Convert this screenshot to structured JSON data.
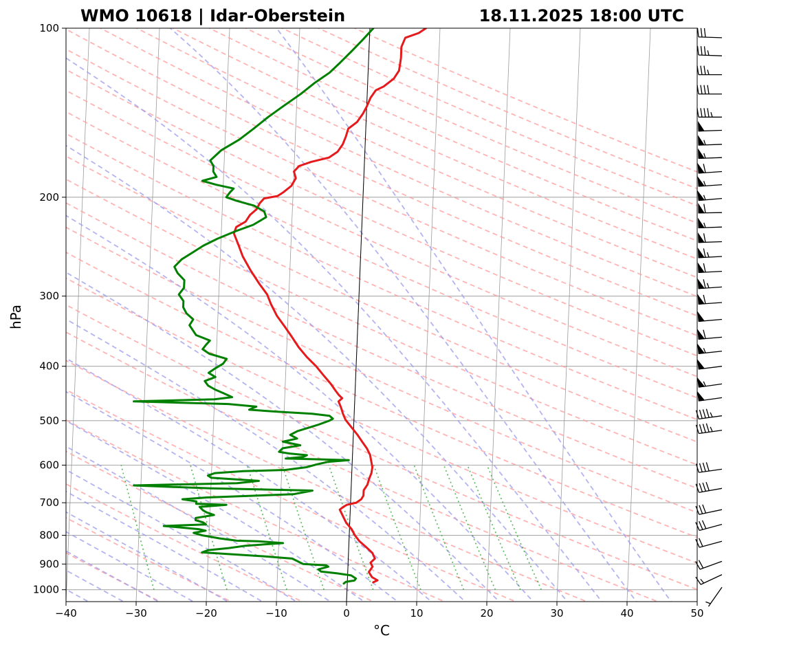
{
  "station_title": "WMO 10618 | Idar-Oberstein",
  "time_title": "18.11.2025 18:00 UTC",
  "chart_data": {
    "type": "line",
    "subtype": "skew-t log-p sounding",
    "xlabel": "°C",
    "ylabel": "hPa",
    "xlim": [
      -40,
      50
    ],
    "ylim": [
      1050,
      100
    ],
    "y_scale": "log",
    "grid": true,
    "x_ticks": [
      -40,
      -30,
      -20,
      -10,
      0,
      10,
      20,
      30,
      40,
      50
    ],
    "y_ticks": [
      1000,
      900,
      800,
      700,
      600,
      500,
      400,
      300,
      200,
      100
    ],
    "colors": {
      "temperature": "#e41a1c",
      "dewpoint": "#008000",
      "dry_adiabats": "#ff9999",
      "moist_adiabats": "#9999ee",
      "mixing_ratio": "#33aa33",
      "isotherms": "#888888",
      "zero_isotherm": "#000000",
      "grid": "#aaaaaa",
      "wind_barbs": "#000000"
    },
    "series": [
      {
        "key": "temperature",
        "points": [
          [
            3.7,
            970
          ],
          [
            4.3,
            962
          ],
          [
            3.5,
            950
          ],
          [
            3.0,
            930
          ],
          [
            3.5,
            910
          ],
          [
            3.2,
            895
          ],
          [
            3.8,
            880
          ],
          [
            3.4,
            860
          ],
          [
            2.5,
            840
          ],
          [
            1.5,
            820
          ],
          [
            0.8,
            800
          ],
          [
            0.3,
            780
          ],
          [
            -0.5,
            760
          ],
          [
            -1.0,
            740
          ],
          [
            -1.5,
            720
          ],
          [
            -1.0,
            712
          ],
          [
            -0.5,
            706
          ],
          [
            0.8,
            700
          ],
          [
            1.5,
            690
          ],
          [
            1.8,
            680
          ],
          [
            1.8,
            665
          ],
          [
            2.3,
            650
          ],
          [
            2.5,
            635
          ],
          [
            2.8,
            620
          ],
          [
            2.9,
            605
          ],
          [
            2.7,
            590
          ],
          [
            2.5,
            575
          ],
          [
            2.0,
            560
          ],
          [
            1.3,
            545
          ],
          [
            0.6,
            530
          ],
          [
            -0.4,
            512
          ],
          [
            -1.2,
            498
          ],
          [
            -1.6,
            486
          ],
          [
            -1.9,
            474
          ],
          [
            -2.3,
            462
          ],
          [
            -1.8,
            456
          ],
          [
            -2.3,
            450
          ],
          [
            -2.8,
            442
          ],
          [
            -3.5,
            430
          ],
          [
            -4.6,
            415
          ],
          [
            -5.7,
            400
          ],
          [
            -7.1,
            385
          ],
          [
            -8.3,
            370
          ],
          [
            -9.3,
            355
          ],
          [
            -10.4,
            340
          ],
          [
            -11.6,
            325
          ],
          [
            -12.5,
            310
          ],
          [
            -13.1,
            298
          ],
          [
            -14.3,
            285
          ],
          [
            -15.6,
            270
          ],
          [
            -16.8,
            255
          ],
          [
            -17.5,
            243
          ],
          [
            -18.2,
            232
          ],
          [
            -17.9,
            226
          ],
          [
            -16.6,
            221
          ],
          [
            -16.0,
            215
          ],
          [
            -15.1,
            210
          ],
          [
            -14.7,
            205
          ],
          [
            -14.1,
            201
          ],
          [
            -12.2,
            199
          ],
          [
            -11.4,
            196
          ],
          [
            -10.3,
            191
          ],
          [
            -9.7,
            185
          ],
          [
            -10.0,
            180
          ],
          [
            -9.3,
            176
          ],
          [
            -7.6,
            173
          ],
          [
            -5.1,
            170
          ],
          [
            -3.9,
            166
          ],
          [
            -3.2,
            161
          ],
          [
            -2.8,
            156
          ],
          [
            -2.5,
            151
          ],
          [
            -1.3,
            147
          ],
          [
            -0.5,
            142
          ],
          [
            0.0,
            138
          ],
          [
            0.5,
            133
          ],
          [
            1.2,
            129
          ],
          [
            2.3,
            127
          ],
          [
            3.7,
            123
          ],
          [
            4.4,
            119
          ],
          [
            4.6,
            113
          ],
          [
            4.6,
            108
          ],
          [
            5.1,
            104
          ],
          [
            7.0,
            102
          ],
          [
            8.0,
            100
          ]
        ]
      },
      {
        "key": "dewpoint",
        "points": [
          [
            -0.5,
            975
          ],
          [
            -0.2,
            968
          ],
          [
            1.0,
            963
          ],
          [
            1.2,
            955
          ],
          [
            0.5,
            943
          ],
          [
            -1.5,
            935
          ],
          [
            -3.8,
            928
          ],
          [
            -4.2,
            920
          ],
          [
            -2.8,
            910
          ],
          [
            -3.1,
            905
          ],
          [
            -6.4,
            900
          ],
          [
            -8.0,
            880
          ],
          [
            -12.0,
            872
          ],
          [
            -20.9,
            858
          ],
          [
            -20.0,
            850
          ],
          [
            -17.1,
            843
          ],
          [
            -14.7,
            835
          ],
          [
            -9.4,
            826
          ],
          [
            -12.9,
            820
          ],
          [
            -16.0,
            818
          ],
          [
            -18.5,
            810
          ],
          [
            -21.0,
            800
          ],
          [
            -22.2,
            792
          ],
          [
            -20.5,
            785
          ],
          [
            -21.5,
            780
          ],
          [
            -26.5,
            770
          ],
          [
            -20.5,
            765
          ],
          [
            -21.0,
            758
          ],
          [
            -22.0,
            752
          ],
          [
            -22.0,
            745
          ],
          [
            -19.4,
            736
          ],
          [
            -20.5,
            728
          ],
          [
            -21.0,
            722
          ],
          [
            -21.5,
            712
          ],
          [
            -17.7,
            706
          ],
          [
            -22.0,
            703
          ],
          [
            -22.0,
            696
          ],
          [
            -24.0,
            690
          ],
          [
            -20.5,
            685
          ],
          [
            -8.2,
            676
          ],
          [
            -5.5,
            666
          ],
          [
            -20.0,
            660
          ],
          [
            -31.0,
            652
          ],
          [
            -16.3,
            646
          ],
          [
            -13.2,
            640
          ],
          [
            -20.0,
            632
          ],
          [
            -20.5,
            626
          ],
          [
            -19.5,
            620
          ],
          [
            -15.5,
            615
          ],
          [
            -9.5,
            612
          ],
          [
            -6.5,
            605
          ],
          [
            -5.0,
            598
          ],
          [
            -3.5,
            592
          ],
          [
            -0.5,
            588
          ],
          [
            -4.5,
            586
          ],
          [
            -9.5,
            584
          ],
          [
            -7.0,
            580
          ],
          [
            -6.5,
            576
          ],
          [
            -9.0,
            572
          ],
          [
            -10.5,
            568
          ],
          [
            -10.0,
            560
          ],
          [
            -7.5,
            553
          ],
          [
            -10.0,
            545
          ],
          [
            -8.0,
            538
          ],
          [
            -9.0,
            530
          ],
          [
            -8.0,
            522
          ],
          [
            -6.5,
            515
          ],
          [
            -5.0,
            508
          ],
          [
            -3.5,
            500
          ],
          [
            -3.0,
            496
          ],
          [
            -3.5,
            490
          ],
          [
            -6.0,
            486
          ],
          [
            -11.0,
            482
          ],
          [
            -15.0,
            478
          ],
          [
            -14.0,
            472
          ],
          [
            -18.0,
            467
          ],
          [
            -31.5,
            462
          ],
          [
            -20.0,
            458
          ],
          [
            -17.5,
            454
          ],
          [
            -18.7,
            447
          ],
          [
            -20.0,
            440
          ],
          [
            -21.0,
            433
          ],
          [
            -21.5,
            425
          ],
          [
            -20.0,
            418
          ],
          [
            -21.0,
            411
          ],
          [
            -20.0,
            403
          ],
          [
            -19.0,
            396
          ],
          [
            -18.5,
            388
          ],
          [
            -21.0,
            380
          ],
          [
            -22.0,
            373
          ],
          [
            -21.5,
            366
          ],
          [
            -21.0,
            360
          ],
          [
            -23.0,
            352
          ],
          [
            -23.5,
            345
          ],
          [
            -24.0,
            338
          ],
          [
            -23.5,
            330
          ],
          [
            -24.5,
            322
          ],
          [
            -25.0,
            314
          ],
          [
            -25.0,
            306
          ],
          [
            -25.7,
            298
          ],
          [
            -25.0,
            290
          ],
          [
            -25.0,
            281
          ],
          [
            -26.0,
            273
          ],
          [
            -26.5,
            266
          ],
          [
            -25.5,
            258
          ],
          [
            -24.0,
            251
          ],
          [
            -22.5,
            244
          ],
          [
            -20.5,
            237
          ],
          [
            -18.0,
            230
          ],
          [
            -15.5,
            224
          ],
          [
            -13.7,
            217
          ],
          [
            -14.0,
            212
          ],
          [
            -15.5,
            207
          ],
          [
            -18.0,
            203
          ],
          [
            -19.5,
            200
          ],
          [
            -19.0,
            196
          ],
          [
            -18.5,
            193
          ],
          [
            -21.0,
            190
          ],
          [
            -23.0,
            187
          ],
          [
            -21.0,
            184
          ],
          [
            -21.5,
            180
          ],
          [
            -21.5,
            176
          ],
          [
            -22.0,
            172
          ],
          [
            -20.5,
            165
          ],
          [
            -18.0,
            158
          ],
          [
            -16.0,
            151
          ],
          [
            -14.0,
            144
          ],
          [
            -12.0,
            138
          ],
          [
            -9.5,
            131
          ],
          [
            -7.5,
            125
          ],
          [
            -5.5,
            120
          ],
          [
            -4.0,
            115
          ],
          [
            -2.5,
            110
          ],
          [
            -1.0,
            105
          ],
          [
            0.5,
            100
          ]
        ]
      }
    ],
    "wind_profile": [
      {
        "p": 990,
        "dir": 215,
        "speed": 5
      },
      {
        "p": 940,
        "dir": 245,
        "speed": 15
      },
      {
        "p": 890,
        "dir": 250,
        "speed": 20
      },
      {
        "p": 820,
        "dir": 255,
        "speed": 20
      },
      {
        "p": 765,
        "dir": 255,
        "speed": 30
      },
      {
        "p": 720,
        "dir": 258,
        "speed": 30
      },
      {
        "p": 660,
        "dir": 260,
        "speed": 40
      },
      {
        "p": 610,
        "dir": 262,
        "speed": 40
      },
      {
        "p": 520,
        "dir": 262,
        "speed": 45
      },
      {
        "p": 490,
        "dir": 262,
        "speed": 45
      },
      {
        "p": 455,
        "dir": 262,
        "speed": 50
      },
      {
        "p": 430,
        "dir": 262,
        "speed": 55
      },
      {
        "p": 400,
        "dir": 263,
        "speed": 50
      },
      {
        "p": 376,
        "dir": 264,
        "speed": 55
      },
      {
        "p": 355,
        "dir": 265,
        "speed": 60
      },
      {
        "p": 330,
        "dir": 265,
        "speed": 50
      },
      {
        "p": 308,
        "dir": 266,
        "speed": 60
      },
      {
        "p": 289,
        "dir": 266,
        "speed": 65
      },
      {
        "p": 271,
        "dir": 267,
        "speed": 60
      },
      {
        "p": 255,
        "dir": 267,
        "speed": 65
      },
      {
        "p": 240,
        "dir": 268,
        "speed": 60
      },
      {
        "p": 226,
        "dir": 268,
        "speed": 55
      },
      {
        "p": 213,
        "dir": 269,
        "speed": 60
      },
      {
        "p": 201,
        "dir": 265,
        "speed": 55
      },
      {
        "p": 190,
        "dir": 266,
        "speed": 55
      },
      {
        "p": 180,
        "dir": 266,
        "speed": 60
      },
      {
        "p": 170,
        "dir": 268,
        "speed": 55
      },
      {
        "p": 161,
        "dir": 268,
        "speed": 55
      },
      {
        "p": 152,
        "dir": 268,
        "speed": 50
      },
      {
        "p": 144,
        "dir": 270,
        "speed": 45
      },
      {
        "p": 131,
        "dir": 270,
        "speed": 40
      },
      {
        "p": 121,
        "dir": 270,
        "speed": 35
      },
      {
        "p": 112,
        "dir": 272,
        "speed": 35
      },
      {
        "p": 104,
        "dir": 272,
        "speed": 30
      }
    ]
  }
}
